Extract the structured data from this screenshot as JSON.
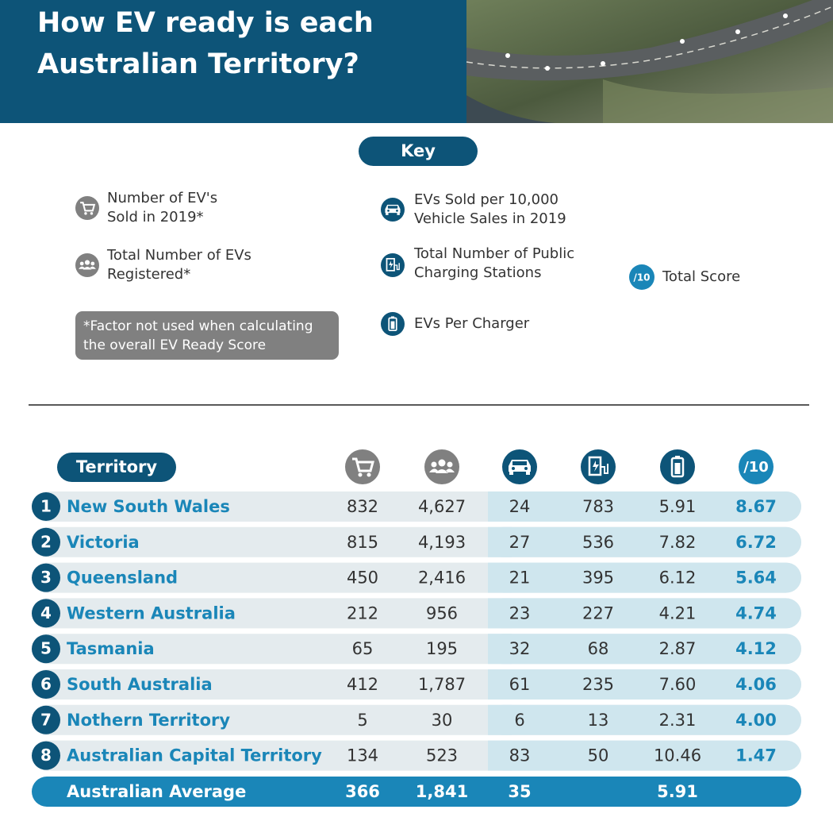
{
  "header": {
    "title": [
      "How EV ready is each",
      "Australian Territory?"
    ]
  },
  "key": {
    "label": "Key",
    "items": [
      {
        "icon": "cart",
        "lines": [
          "Number of EV's",
          "Sold in 2019*"
        ]
      },
      {
        "icon": "people",
        "lines": [
          "Total Number of EVs",
          "Registered*"
        ]
      },
      {
        "icon": "car",
        "lines": [
          "EVs Sold per 10,000",
          "Vehicle Sales in 2019"
        ]
      },
      {
        "icon": "charger",
        "lines": [
          "Total Number of Public",
          "Charging Stations"
        ]
      },
      {
        "icon": "battery",
        "lines": [
          "EVs Per Charger"
        ]
      },
      {
        "icon": "score",
        "lines": [
          "Total Score"
        ]
      }
    ],
    "note": [
      "*Factor not used when calculating",
      "the overall EV Ready Score"
    ],
    "score_badge": "/10"
  },
  "table": {
    "label": "Territory",
    "rows": [
      {
        "rank": "1",
        "name": "New South Wales",
        "values": [
          "832",
          "4,627",
          "24",
          "783",
          "5.91",
          "8.67"
        ]
      },
      {
        "rank": "2",
        "name": "Victoria",
        "values": [
          "815",
          "4,193",
          "27",
          "536",
          "7.82",
          "6.72"
        ]
      },
      {
        "rank": "3",
        "name": "Queensland",
        "values": [
          "450",
          "2,416",
          "21",
          "395",
          "6.12",
          "5.64"
        ]
      },
      {
        "rank": "4",
        "name": "Western Australia",
        "values": [
          "212",
          "956",
          "23",
          "227",
          "4.21",
          "4.74"
        ]
      },
      {
        "rank": "5",
        "name": "Tasmania",
        "values": [
          "65",
          "195",
          "32",
          "68",
          "2.87",
          "4.12"
        ]
      },
      {
        "rank": "6",
        "name": "South Australia",
        "values": [
          "412",
          "1,787",
          "61",
          "235",
          "7.60",
          "4.06"
        ]
      },
      {
        "rank": "7",
        "name": "Nothern Territory",
        "values": [
          "5",
          "30",
          "6",
          "13",
          "2.31",
          "4.00"
        ]
      },
      {
        "rank": "8",
        "name": "Australian Capital Territory",
        "values": [
          "134",
          "523",
          "83",
          "50",
          "10.46",
          "1.47"
        ]
      }
    ],
    "average": {
      "name": "Australian Average",
      "values": [
        "366",
        "1,841",
        "35",
        null,
        "5.91",
        null
      ]
    }
  }
}
